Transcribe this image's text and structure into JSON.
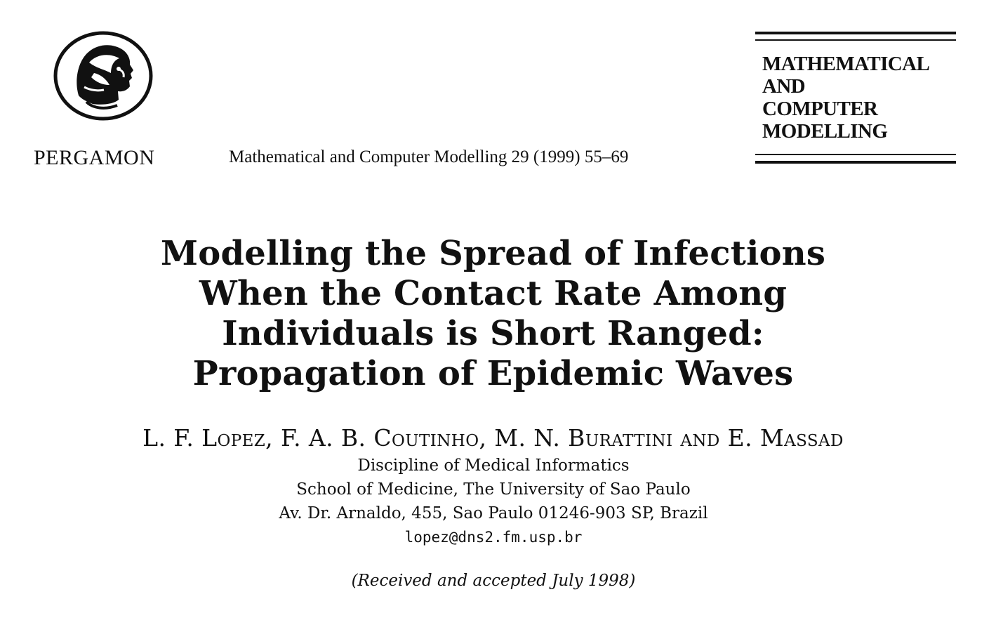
{
  "header": {
    "publisher": "PERGAMON",
    "citation": "Mathematical and Computer Modelling 29 (1999) 55–69",
    "journal_lines": [
      "MATHEMATICAL",
      "AND",
      "COMPUTER",
      "MODELLING"
    ]
  },
  "article": {
    "title_lines": [
      "Modelling the Spread of Infections",
      "When the Contact Rate Among",
      "Individuals is Short Ranged:",
      "Propagation of Epidemic Waves"
    ],
    "authors": "L. F. Lopez, F. A. B. Coutinho, M. N. Burattini and E. Massad",
    "affiliation": {
      "line1": "Discipline of Medical Informatics",
      "line2": "School of Medicine, The University of Sao Paulo",
      "line3": "Av. Dr. Arnaldo, 455, Sao Paulo 01246-903 SP, Brazil",
      "email": "lopez@dns2.fm.usp.br"
    },
    "received": "(Received and accepted July 1998)"
  },
  "icons": {
    "publisher_logo": "athena-head-logo-icon"
  }
}
